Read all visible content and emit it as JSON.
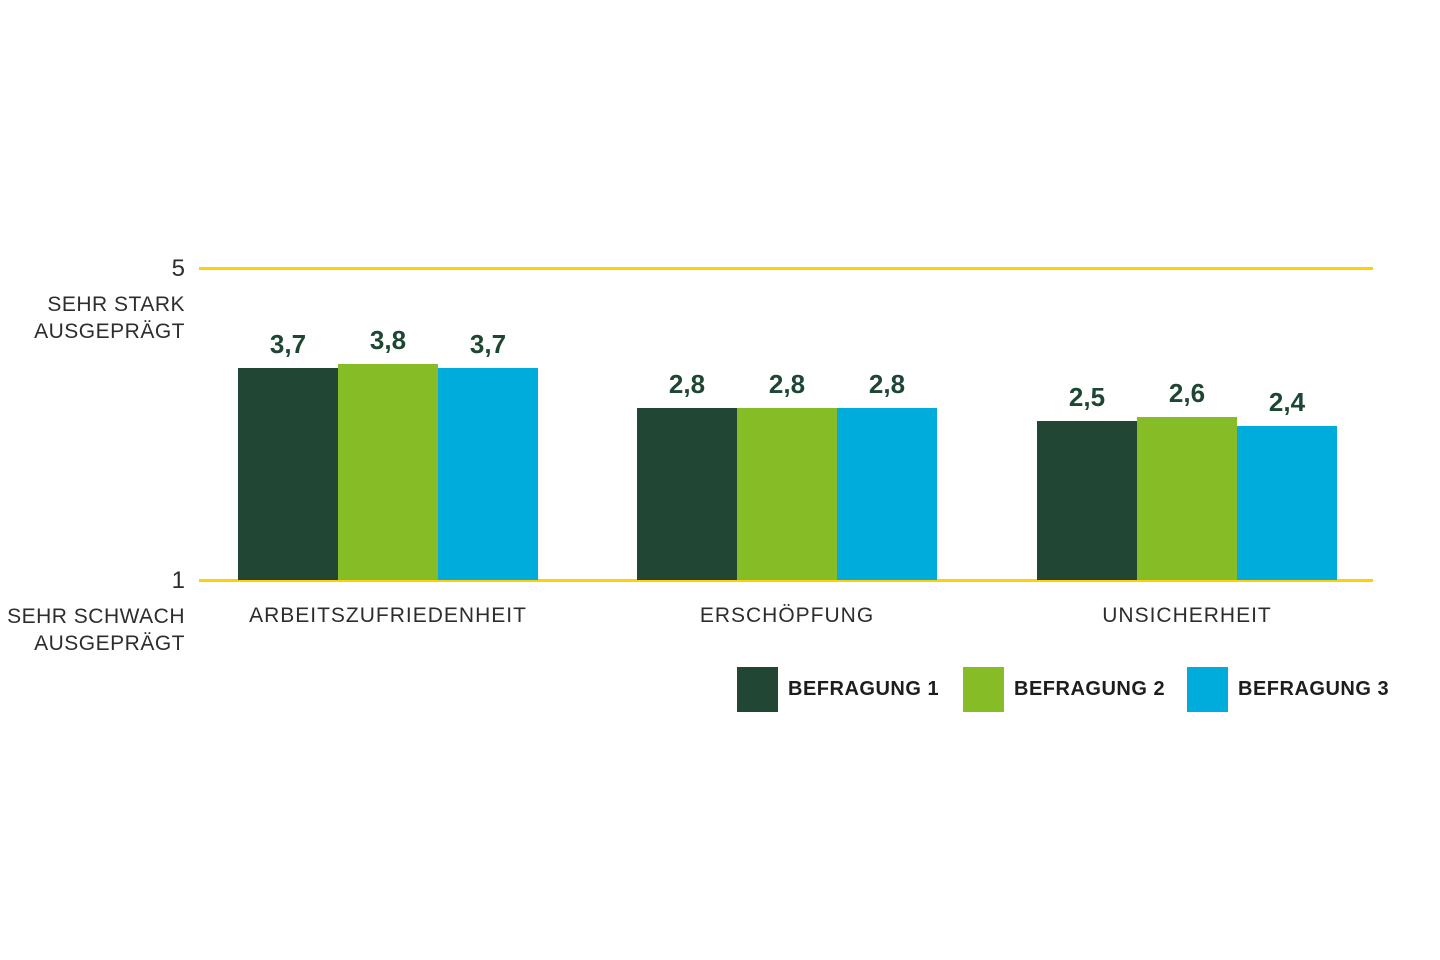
{
  "page": {
    "background": "#FFFFFF"
  },
  "chart_data": {
    "type": "bar",
    "title": "",
    "categories": [
      "ARBEITSZUFRIEDENHEIT",
      "ERSCHÖPFUNG",
      "UNSICHERHEIT"
    ],
    "series": [
      {
        "name": "BEFRAGUNG 1",
        "color": "#214634",
        "values": [
          3.7,
          2.8,
          2.5
        ],
        "display_labels": [
          "3,7",
          "2,8",
          "2,5"
        ]
      },
      {
        "name": "BEFRAGUNG 2",
        "color": "#86BC25",
        "values": [
          3.8,
          2.8,
          2.6
        ],
        "display_labels": [
          "3,8",
          "2,8",
          "2,6"
        ]
      },
      {
        "name": "BEFRAGUNG 3",
        "color": "#00ACDC",
        "values": [
          3.7,
          2.8,
          2.4
        ],
        "display_labels": [
          "3,7",
          "2,8",
          "2,4"
        ]
      }
    ],
    "axis": {
      "ylim": [
        1,
        5
      ],
      "ymax_tick": {
        "value": "5",
        "lines": [
          "SEHR STARK",
          "AUSGEPRÄGT"
        ]
      },
      "ymin_tick": {
        "value": "1",
        "lines": [
          "SEHR SCHWACH",
          "AUSGEPRÄGT"
        ]
      },
      "gridlines": "horizontal lines at y=1 and y=5 only",
      "gridline_color": "#FDD200"
    },
    "legend": {
      "position": "bottom",
      "entries": [
        "BEFRAGUNG 1",
        "BEFRAGUNG 2",
        "BEFRAGUNG 3"
      ]
    },
    "value_label_color": "#1E4733",
    "text_color": "#2D2D2D"
  }
}
